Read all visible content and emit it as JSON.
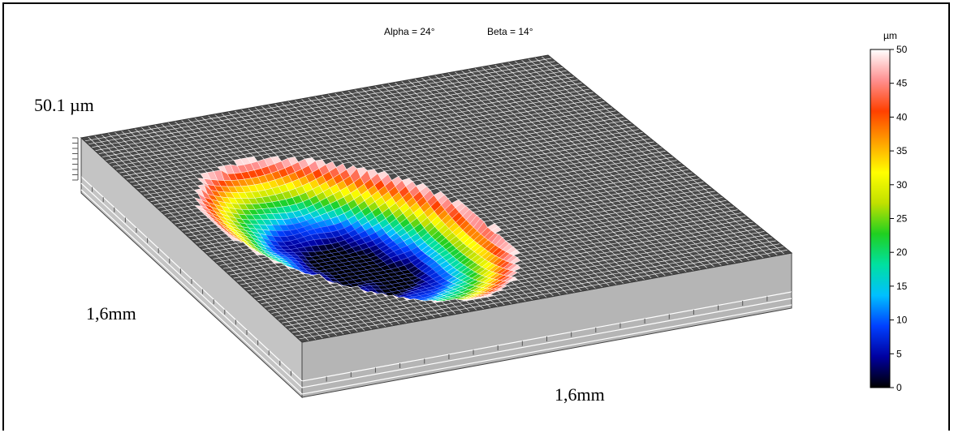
{
  "header": {
    "alpha_text": "Alpha = 24°",
    "beta_text": "Beta = 14°"
  },
  "labels": {
    "z_max": "50.1 µm",
    "y_extent": "1,6mm",
    "x_extent": "1,6mm"
  },
  "chart_data": {
    "type": "heatmap",
    "subtype": "3d-surface",
    "view": {
      "alpha_deg": 24,
      "beta_deg": 14
    },
    "z_max": 50.1,
    "z_unit": "µm",
    "x_extent": "1,6mm",
    "y_extent": "1,6mm",
    "colorbar": {
      "unit": "µm",
      "range": [
        0,
        50
      ],
      "ticks": [
        0,
        5,
        10,
        15,
        20,
        25,
        30,
        35,
        40,
        45,
        50
      ],
      "tick_labels": [
        "0",
        "5",
        "10",
        "15",
        "20",
        "25",
        "30",
        "35",
        "40",
        "45",
        "50"
      ],
      "colormap": [
        "#000000",
        "#0000a0",
        "#0040ff",
        "#00c0ff",
        "#00e0a0",
        "#20d020",
        "#c0e000",
        "#ffff00",
        "#ffa000",
        "#ff4000",
        "#ff9090",
        "#ffffff"
      ]
    }
  }
}
